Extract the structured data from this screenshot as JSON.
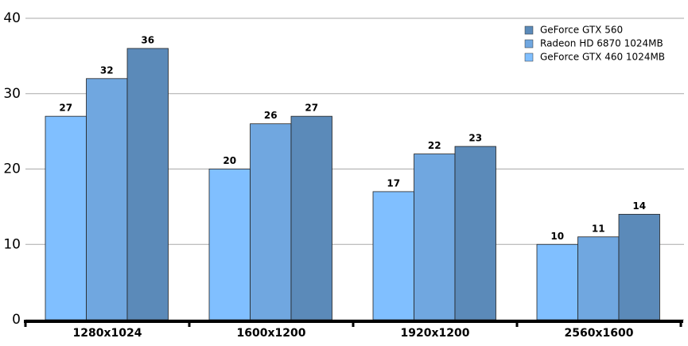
{
  "chart_data": {
    "type": "bar",
    "categories": [
      "1280x1024",
      "1600x1200",
      "1920x1200",
      "2560x1600"
    ],
    "series": [
      {
        "name": "GeForce GTX 560",
        "color": "#5b8ab9",
        "values": [
          36,
          27,
          23,
          14
        ]
      },
      {
        "name": "Radeon HD 6870 1024MB",
        "color": "#70a7e0",
        "values": [
          32,
          26,
          22,
          11
        ]
      },
      {
        "name": "GeForce GTX 460 1024MB",
        "color": "#80bfff",
        "values": [
          27,
          20,
          17,
          10
        ]
      }
    ],
    "ylim": [
      0,
      40
    ],
    "yticks": [
      0,
      10,
      20,
      30,
      40
    ],
    "grid": true,
    "legend": "top-right"
  }
}
